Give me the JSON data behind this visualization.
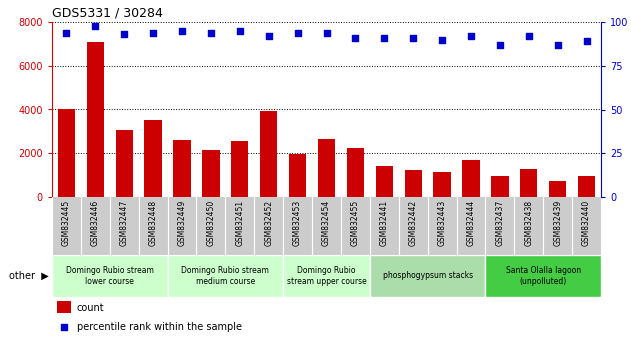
{
  "title": "GDS5331 / 30284",
  "samples": [
    "GSM832445",
    "GSM832446",
    "GSM832447",
    "GSM832448",
    "GSM832449",
    "GSM832450",
    "GSM832451",
    "GSM832452",
    "GSM832453",
    "GSM832454",
    "GSM832455",
    "GSM832441",
    "GSM832442",
    "GSM832443",
    "GSM832444",
    "GSM832437",
    "GSM832438",
    "GSM832439",
    "GSM832440"
  ],
  "counts": [
    4000,
    7100,
    3050,
    3500,
    2600,
    2150,
    2550,
    3950,
    1950,
    2650,
    2250,
    1400,
    1250,
    1150,
    1700,
    950,
    1300,
    750,
    950
  ],
  "percentiles": [
    94,
    98,
    93,
    94,
    95,
    94,
    95,
    92,
    94,
    94,
    91,
    91,
    91,
    90,
    92,
    87,
    92,
    87,
    89
  ],
  "bar_color": "#cc0000",
  "dot_color": "#0000cc",
  "ylim_left": [
    0,
    8000
  ],
  "ylim_right": [
    0,
    100
  ],
  "yticks_left": [
    0,
    2000,
    4000,
    6000,
    8000
  ],
  "yticks_right": [
    0,
    25,
    50,
    75,
    100
  ],
  "groups": [
    {
      "label": "Domingo Rubio stream\nlower course",
      "start": 0,
      "end": 4,
      "color": "#ccffcc"
    },
    {
      "label": "Domingo Rubio stream\nmedium course",
      "start": 4,
      "end": 8,
      "color": "#ccffcc"
    },
    {
      "label": "Domingo Rubio\nstream upper course",
      "start": 8,
      "end": 11,
      "color": "#ccffcc"
    },
    {
      "label": "phosphogypsum stacks",
      "start": 11,
      "end": 15,
      "color": "#aaddaa"
    },
    {
      "label": "Santa Olalla lagoon\n(unpolluted)",
      "start": 15,
      "end": 19,
      "color": "#44cc44"
    }
  ],
  "background_color": "#ffffff",
  "tick_area_color": "#cccccc",
  "legend_count_label": "count",
  "legend_pct_label": "percentile rank within the sample"
}
